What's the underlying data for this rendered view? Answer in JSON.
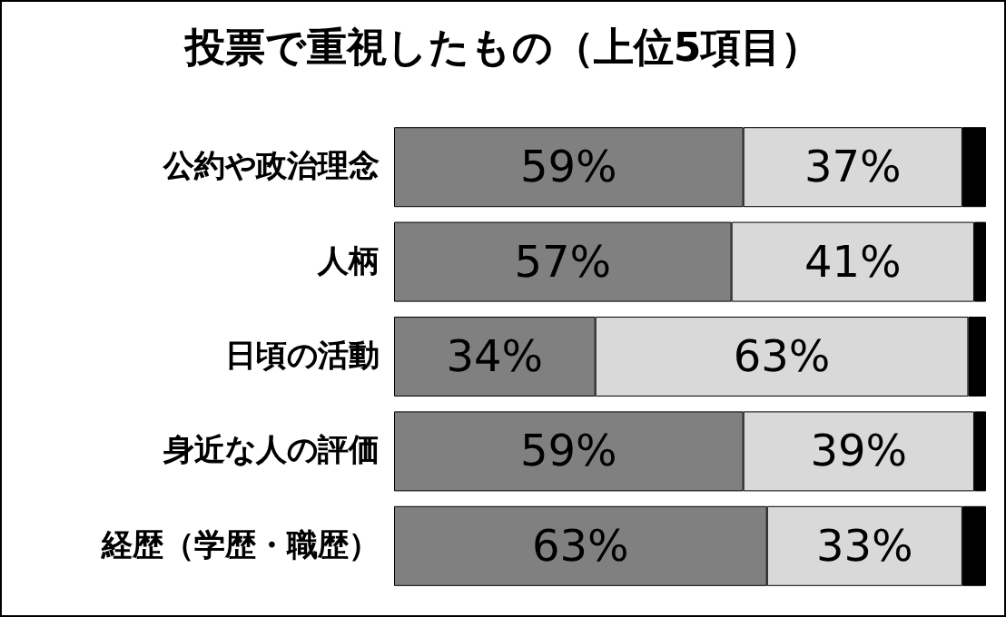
{
  "chart_data": {
    "type": "bar",
    "title": "投票で重視したもの（上位5項目）",
    "orientation": "horizontal",
    "stacked": true,
    "categories": [
      "公約や政治理念",
      "人柄",
      "日頃の活動",
      "身近な人の評価",
      "経歴（学歴・職歴）"
    ],
    "series": [
      {
        "color": "#808080",
        "values": [
          59,
          57,
          34,
          59,
          63
        ],
        "value_labels": [
          "59%",
          "57%",
          "34%",
          "59%",
          "63%"
        ]
      },
      {
        "color": "#d9d9d9",
        "values": [
          37,
          41,
          63,
          39,
          33
        ],
        "value_labels": [
          "37%",
          "41%",
          "63%",
          "39%",
          "33%"
        ]
      },
      {
        "color": "#000000",
        "values": [
          4,
          2,
          3,
          2,
          4
        ],
        "value_labels": [
          null,
          null,
          null,
          null,
          null
        ]
      }
    ]
  }
}
